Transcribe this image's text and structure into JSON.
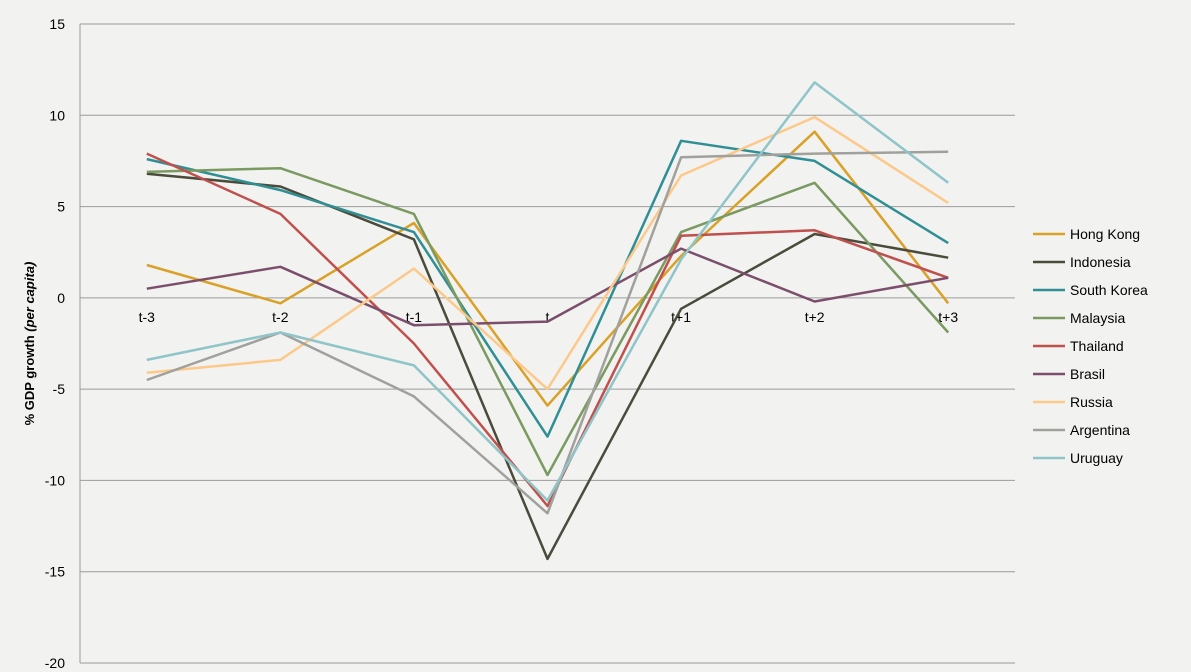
{
  "chart_data": {
    "type": "line",
    "categories": [
      "t-3",
      "t-2",
      "t-1",
      "t",
      "t+1",
      "t+2",
      "t+3"
    ],
    "ylabel_main": "% GDP growth ",
    "ylabel_italic": "(per capita)",
    "ylim": [
      -20,
      15
    ],
    "yticks": [
      -20,
      -15,
      -10,
      -5,
      0,
      5,
      10,
      15
    ],
    "grid": true,
    "legend_position": "right",
    "series": [
      {
        "name": "Hong Kong",
        "color": "#d9a128",
        "values": [
          1.8,
          -0.3,
          4.1,
          -5.9,
          2.3,
          9.1,
          -0.3
        ]
      },
      {
        "name": "Indonesia",
        "color": "#4b4b3c",
        "values": [
          6.8,
          6.1,
          3.2,
          -14.3,
          -0.6,
          3.5,
          2.2
        ]
      },
      {
        "name": "South Korea",
        "color": "#2f8f95",
        "values": [
          7.6,
          5.9,
          3.6,
          -7.6,
          8.6,
          7.5,
          3.0
        ]
      },
      {
        "name": "Malaysia",
        "color": "#7a9a62",
        "values": [
          6.9,
          7.1,
          4.6,
          -9.7,
          3.6,
          6.3,
          -1.9
        ]
      },
      {
        "name": "Thailand",
        "color": "#c0504d",
        "values": [
          7.9,
          4.6,
          -2.5,
          -11.4,
          3.4,
          3.7,
          1.1
        ]
      },
      {
        "name": "Brasil",
        "color": "#7b4f6c",
        "values": [
          0.5,
          1.7,
          -1.5,
          -1.3,
          2.7,
          -0.2,
          1.1
        ]
      },
      {
        "name": "Russia",
        "color": "#fcc98a",
        "values": [
          -4.1,
          -3.4,
          1.6,
          -5.0,
          6.7,
          9.9,
          5.2
        ]
      },
      {
        "name": "Argentina",
        "color": "#a0a09c",
        "values": [
          -4.5,
          -1.9,
          -5.4,
          -11.8,
          7.7,
          7.9,
          8.0
        ]
      },
      {
        "name": "Uruguay",
        "color": "#8fc5c9",
        "values": [
          -3.4,
          -1.9,
          -3.7,
          -11.1,
          2.1,
          11.8,
          6.3
        ]
      }
    ]
  }
}
